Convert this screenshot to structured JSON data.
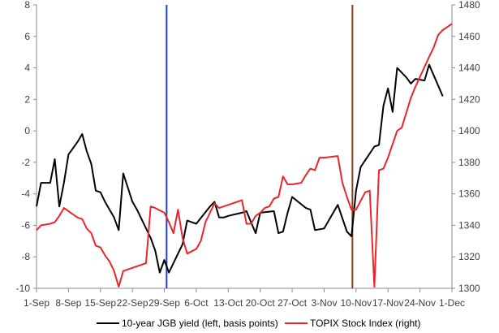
{
  "chart_data": {
    "type": "line",
    "title": "",
    "x_start_date": "2014-09-01",
    "x_axis": {
      "min": 0,
      "max": 91,
      "ticks": [
        {
          "label": "1-Sep",
          "value": 0
        },
        {
          "label": "8-Sep",
          "value": 7
        },
        {
          "label": "15-Sep",
          "value": 14
        },
        {
          "label": "22-Sep",
          "value": 21
        },
        {
          "label": "29-Sep",
          "value": 28
        },
        {
          "label": "6-Oct",
          "value": 35
        },
        {
          "label": "13-Oct",
          "value": 42
        },
        {
          "label": "20-Oct",
          "value": 49
        },
        {
          "label": "27-Oct",
          "value": 56
        },
        {
          "label": "3-Nov",
          "value": 63
        },
        {
          "label": "10-Nov",
          "value": 70
        },
        {
          "label": "17-Nov",
          "value": 77
        },
        {
          "label": "24-Nov",
          "value": 84
        },
        {
          "label": "1-Dec",
          "value": 91
        }
      ]
    },
    "y_left": {
      "min": -10,
      "max": 8,
      "ticks": [
        "-10",
        "-8",
        "-6",
        "-4",
        "-2",
        "0",
        "2",
        "4",
        "6",
        "8"
      ]
    },
    "y_right": {
      "min": 1300,
      "max": 1480,
      "ticks": [
        "1300",
        "1320",
        "1340",
        "1360",
        "1380",
        "1400",
        "1420",
        "1440",
        "1460",
        "1480"
      ]
    },
    "grid": false,
    "legend_position": "bottom",
    "vertical_lines": [
      {
        "x": 28.5,
        "color": "#1f3fd1"
      },
      {
        "x": 69.2,
        "color": "#8b3a1a"
      }
    ],
    "series": [
      {
        "name": "10-year JGB yield (left, basis points)",
        "axis": "left",
        "color": "#000000",
        "points": [
          [
            0,
            -4.8
          ],
          [
            1,
            -3.3
          ],
          [
            2,
            -3.3
          ],
          [
            3,
            -3.3
          ],
          [
            4,
            -1.8
          ],
          [
            5,
            -4.8
          ],
          [
            6,
            -3.3
          ],
          [
            7,
            -1.5
          ],
          [
            9,
            -0.7
          ],
          [
            10,
            -0.2
          ],
          [
            11,
            -1.3
          ],
          [
            12,
            -2.1
          ],
          [
            13,
            -3.8
          ],
          [
            14,
            -3.9
          ],
          [
            15,
            -4.5
          ],
          [
            17,
            -5.5
          ],
          [
            18,
            -6.3
          ],
          [
            19,
            -2.7
          ],
          [
            21,
            -4.5
          ],
          [
            22,
            -5.0
          ],
          [
            25,
            -6.8
          ],
          [
            26,
            -7.6
          ],
          [
            27,
            -9.0
          ],
          [
            28,
            -8.2
          ],
          [
            29,
            -9.0
          ],
          [
            31,
            -7.8
          ],
          [
            32,
            -7.2
          ],
          [
            33,
            -5.7
          ],
          [
            35,
            -5.9
          ],
          [
            38,
            -4.8
          ],
          [
            39,
            -4.5
          ],
          [
            40,
            -5.5
          ],
          [
            41,
            -5.5
          ],
          [
            42,
            -5.4
          ],
          [
            45,
            -5.2
          ],
          [
            46,
            -5.1
          ],
          [
            47,
            -5.8
          ],
          [
            48,
            -6.5
          ],
          [
            49,
            -5.2
          ],
          [
            52,
            -5.1
          ],
          [
            53,
            -6.5
          ],
          [
            54,
            -6.4
          ],
          [
            55,
            -5.2
          ],
          [
            56,
            -4.2
          ],
          [
            59,
            -4.9
          ],
          [
            60,
            -5.0
          ],
          [
            61,
            -6.3
          ],
          [
            63,
            -6.2
          ],
          [
            66,
            -4.7
          ],
          [
            68,
            -6.4
          ],
          [
            69,
            -6.7
          ],
          [
            70,
            -3.8
          ],
          [
            71,
            -2.3
          ],
          [
            74,
            -1.0
          ],
          [
            75,
            -0.9
          ],
          [
            76,
            1.6
          ],
          [
            77,
            2.7
          ],
          [
            78,
            1.2
          ],
          [
            79,
            4.0
          ],
          [
            81,
            3.4
          ],
          [
            82,
            3.0
          ],
          [
            83,
            3.3
          ],
          [
            85,
            3.2
          ],
          [
            86,
            4.2
          ],
          [
            89,
            2.2
          ]
        ]
      },
      {
        "name": "TOPIX Stock Index (right)",
        "axis": "right",
        "color": "#e8262b",
        "points": [
          [
            0,
            1337
          ],
          [
            1,
            1340
          ],
          [
            3,
            1341
          ],
          [
            4,
            1342
          ],
          [
            5,
            1346
          ],
          [
            6,
            1351
          ],
          [
            7,
            1349
          ],
          [
            8,
            1347
          ],
          [
            9,
            1345
          ],
          [
            10,
            1344
          ],
          [
            11,
            1338
          ],
          [
            12,
            1335
          ],
          [
            13,
            1327
          ],
          [
            14,
            1326
          ],
          [
            15,
            1321
          ],
          [
            16,
            1317
          ],
          [
            17,
            1311
          ],
          [
            18,
            1301
          ],
          [
            19,
            1311
          ],
          [
            23,
            1315
          ],
          [
            24,
            1316
          ],
          [
            25,
            1352
          ],
          [
            26,
            1351
          ],
          [
            28,
            1348
          ],
          [
            29,
            1342
          ],
          [
            30,
            1335
          ],
          [
            31,
            1350
          ],
          [
            32,
            1332
          ],
          [
            33,
            1322
          ],
          [
            35,
            1325
          ],
          [
            36,
            1330
          ],
          [
            37,
            1342
          ],
          [
            38,
            1348
          ],
          [
            39,
            1354
          ],
          [
            40,
            1351
          ],
          [
            41,
            1352
          ],
          [
            45,
            1356
          ],
          [
            46,
            1341
          ],
          [
            47,
            1341
          ],
          [
            48,
            1346
          ],
          [
            49,
            1348
          ],
          [
            50,
            1351
          ],
          [
            51,
            1352
          ],
          [
            52,
            1357
          ],
          [
            53,
            1358
          ],
          [
            54,
            1371
          ],
          [
            55,
            1366
          ],
          [
            56,
            1366
          ],
          [
            58,
            1367
          ],
          [
            59,
            1372
          ],
          [
            60,
            1376
          ],
          [
            61,
            1375
          ],
          [
            62,
            1383
          ],
          [
            63,
            1383
          ],
          [
            66,
            1384
          ],
          [
            67,
            1367
          ],
          [
            68,
            1358
          ],
          [
            69,
            1350
          ],
          [
            70,
            1350
          ],
          [
            72,
            1361
          ],
          [
            73,
            1362
          ],
          [
            74,
            1301
          ],
          [
            75,
            1375
          ],
          [
            76,
            1376
          ],
          [
            77,
            1383
          ],
          [
            79,
            1400
          ],
          [
            80,
            1402
          ],
          [
            82,
            1421
          ],
          [
            83,
            1428
          ],
          [
            86,
            1447
          ],
          [
            87,
            1453
          ],
          [
            88,
            1461
          ],
          [
            89,
            1464
          ],
          [
            91,
            1468
          ]
        ]
      }
    ]
  }
}
